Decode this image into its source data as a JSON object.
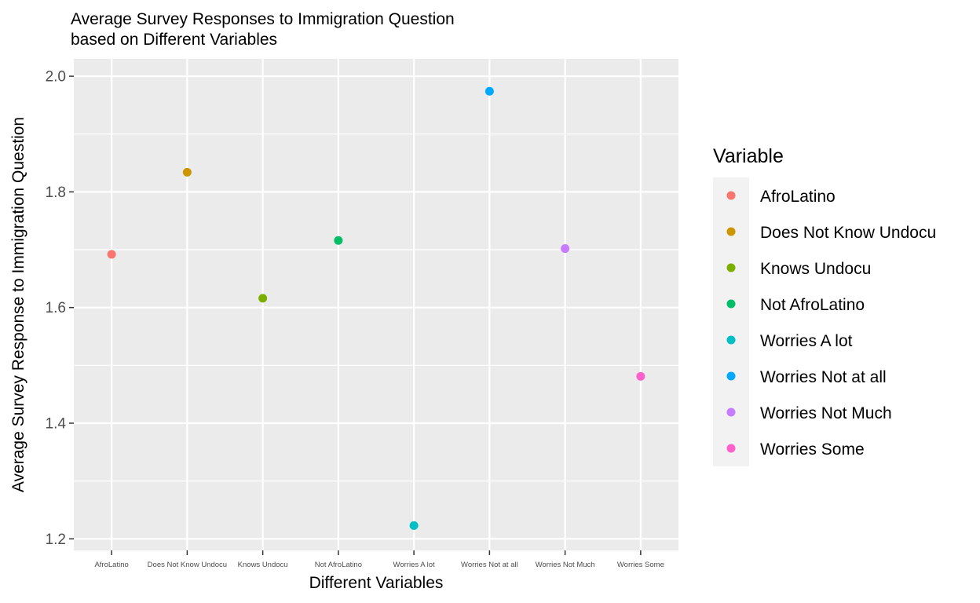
{
  "chart_data": {
    "type": "scatter",
    "title": "Average Survey Responses to Immigration Question",
    "subtitle": "based on Different Variables",
    "xlabel": "Different Variables",
    "ylabel": "Average Survey Response to Immigration Question",
    "categories": [
      "AfroLatino",
      "Does Not Know Undocu",
      "Knows Undocu",
      "Not AfroLatino",
      "Worries A lot",
      "Worries Not at all",
      "Worries Not Much",
      "Worries Some"
    ],
    "values": [
      1.692,
      1.834,
      1.616,
      1.716,
      1.223,
      1.974,
      1.702,
      1.481
    ],
    "colors": [
      "#F8766D",
      "#CD9600",
      "#7CAE00",
      "#00BE67",
      "#00BFC4",
      "#00A9FF",
      "#C77CFF",
      "#FF61CC"
    ],
    "ylim": [
      1.18,
      2.03
    ],
    "yticks": [
      1.2,
      1.4,
      1.6,
      1.8,
      2.0
    ],
    "ytick_labels": [
      "1.2",
      "1.4",
      "1.6",
      "1.8",
      "2.0"
    ],
    "grid": true,
    "legend": {
      "title": "Variable",
      "placement": "right",
      "entries": [
        "AfroLatino",
        "Does Not Know Undocu",
        "Knows Undocu",
        "Not AfroLatino",
        "Worries A lot",
        "Worries Not at all",
        "Worries Not Much",
        "Worries Some"
      ]
    }
  }
}
